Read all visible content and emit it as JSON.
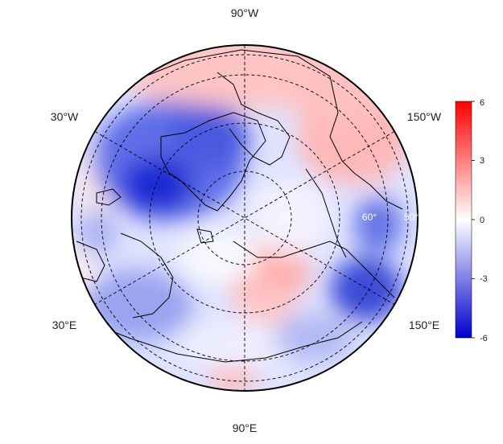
{
  "map": {
    "projection": "north-polar-stereographic",
    "longitude_labels": [
      {
        "id": "lon-90w",
        "text": "90°W"
      },
      {
        "id": "lon-30w",
        "text": "30°W"
      },
      {
        "id": "lon-150w",
        "text": "150°W"
      },
      {
        "id": "lon-30e",
        "text": "30°E"
      },
      {
        "id": "lon-150e",
        "text": "150°E"
      },
      {
        "id": "lon-90e",
        "text": "90°E"
      }
    ],
    "latitude_labels": [
      {
        "id": "lat-80",
        "text": "80°"
      },
      {
        "id": "lat-60",
        "text": "60°"
      },
      {
        "id": "lat-50",
        "text": "50°"
      }
    ],
    "graticule_style": "dashed",
    "colors": {
      "negative": "#0000cc",
      "zero": "#ffffff",
      "positive": "#ff0000",
      "coastline": "#000000"
    }
  },
  "colorbar": {
    "min": -6,
    "max": 6,
    "ticks": [
      "6",
      "3",
      "0",
      "-3",
      "-6"
    ]
  }
}
